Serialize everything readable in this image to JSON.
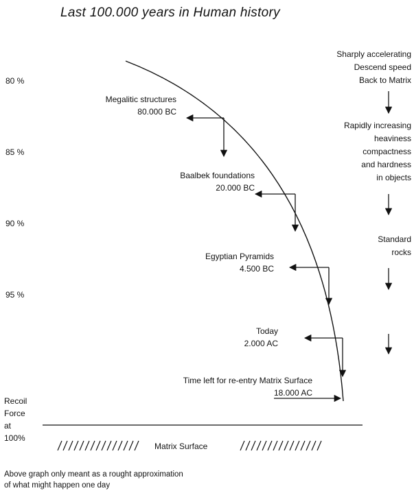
{
  "title": "Last 100.000 years in Human history",
  "y_axis": {
    "ticks": [
      "80 %",
      "85 %",
      "90 %",
      "95 %"
    ],
    "bottom_label": [
      "Recoil",
      "Force",
      "at",
      "100%"
    ]
  },
  "milestones": [
    {
      "name": "Megalitic structures",
      "date": "80.000 BC"
    },
    {
      "name": "Baalbek foundations",
      "date": "20.000 BC"
    },
    {
      "name": "Egyptian Pyramids",
      "date": "4.500 BC"
    },
    {
      "name": "Today",
      "date": "2.000 AC"
    },
    {
      "name": "Time left for re-entry Matrix Surface",
      "date": "18.000 AC"
    }
  ],
  "right_notes": [
    [
      "Sharply accelerating",
      "Descend speed",
      "Back to Matrix"
    ],
    [
      "Rapidly increasing",
      "heaviness",
      "compactness",
      "and hardness",
      "in objects"
    ],
    [
      "Standard",
      "rocks"
    ]
  ],
  "surface_label": "Matrix Surface",
  "footnote": [
    "Above graph only meant as a rought approximation",
    "of what might happen one day"
  ]
}
